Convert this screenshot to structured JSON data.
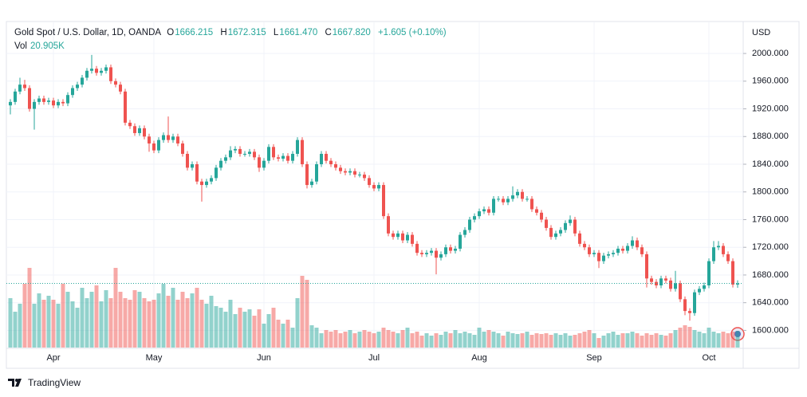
{
  "chart_data": {
    "type": "candlestick",
    "title": "Gold Spot / U.S. Dollar, 1D, OANDA",
    "ohlc": [
      {
        "key": "O",
        "value": "1666.215"
      },
      {
        "key": "H",
        "value": "1672.315"
      },
      {
        "key": "L",
        "value": "1661.470"
      },
      {
        "key": "C",
        "value": "1667.820"
      }
    ],
    "change": "+1.605 (+0.10%)",
    "volume_label": "Vol",
    "volume_value": "20.905K",
    "currency": "USD",
    "brand": "TradingView",
    "up_color": "#26a69a",
    "down_color": "#ef5350",
    "grid": true,
    "ylim": [
      1574,
      2045
    ],
    "yticks": [
      {
        "value": 1600,
        "label": "1600.000"
      },
      {
        "value": 1640,
        "label": "1640.000"
      },
      {
        "value": 1680,
        "label": "1680.000"
      },
      {
        "value": 1720,
        "label": "1720.000"
      },
      {
        "value": 1760,
        "label": "1760.000"
      },
      {
        "value": 1800,
        "label": "1800.000"
      },
      {
        "value": 1840,
        "label": "1840.000"
      },
      {
        "value": 1880,
        "label": "1880.000"
      },
      {
        "value": 1920,
        "label": "1920.000"
      },
      {
        "value": 1960,
        "label": "1960.000"
      },
      {
        "value": 2000,
        "label": "2000.000"
      }
    ],
    "categories": [
      null,
      null,
      null,
      null,
      null,
      null,
      null,
      null,
      null,
      "Apr",
      null,
      null,
      null,
      null,
      null,
      null,
      null,
      null,
      null,
      null,
      null,
      null,
      null,
      null,
      null,
      null,
      null,
      null,
      null,
      null,
      "May",
      null,
      null,
      null,
      null,
      null,
      null,
      null,
      null,
      null,
      null,
      null,
      null,
      null,
      null,
      null,
      null,
      null,
      null,
      null,
      null,
      null,
      null,
      "Jun",
      null,
      null,
      null,
      null,
      null,
      null,
      null,
      null,
      null,
      null,
      null,
      null,
      null,
      null,
      null,
      null,
      null,
      null,
      null,
      null,
      null,
      null,
      "Jul",
      null,
      null,
      null,
      null,
      null,
      null,
      null,
      null,
      null,
      null,
      null,
      null,
      null,
      null,
      null,
      null,
      null,
      null,
      null,
      null,
      null,
      "Aug",
      null,
      null,
      null,
      null,
      null,
      null,
      null,
      null,
      null,
      null,
      null,
      null,
      null,
      null,
      null,
      null,
      null,
      null,
      null,
      null,
      null,
      null,
      null,
      "Sep",
      null,
      null,
      null,
      null,
      null,
      null,
      null,
      null,
      null,
      null,
      null,
      null,
      null,
      null,
      null,
      null,
      null,
      null,
      null,
      null,
      null,
      null,
      null,
      "Oct",
      null,
      null,
      null,
      null,
      null,
      null
    ],
    "open": [
      1925,
      1930,
      1945,
      1955,
      1950,
      1920,
      1930,
      1935,
      1930,
      1932,
      1925,
      1930,
      1928,
      1940,
      1950,
      1955,
      1965,
      1975,
      1978,
      1972,
      1975,
      1980,
      1960,
      1955,
      1945,
      1900,
      1895,
      1885,
      1892,
      1880,
      1870,
      1860,
      1875,
      1882,
      1875,
      1880,
      1870,
      1855,
      1835,
      1840,
      1815,
      1810,
      1815,
      1820,
      1835,
      1845,
      1850,
      1860,
      1862,
      1855,
      1855,
      1858,
      1850,
      1835,
      1845,
      1865,
      1850,
      1848,
      1852,
      1845,
      1855,
      1875,
      1840,
      1810,
      1815,
      1840,
      1855,
      1845,
      1840,
      1835,
      1830,
      1828,
      1830,
      1825,
      1825,
      1820,
      1810,
      1805,
      1810,
      1765,
      1740,
      1735,
      1740,
      1730,
      1738,
      1725,
      1712,
      1710,
      1712,
      1715,
      1705,
      1710,
      1720,
      1715,
      1718,
      1738,
      1745,
      1760,
      1765,
      1772,
      1775,
      1770,
      1790,
      1790,
      1785,
      1790,
      1795,
      1800,
      1790,
      1790,
      1775,
      1770,
      1760,
      1748,
      1735,
      1740,
      1745,
      1755,
      1760,
      1740,
      1725,
      1720,
      1710,
      1712,
      1700,
      1708,
      1710,
      1712,
      1718,
      1715,
      1722,
      1730,
      1720,
      1710,
      1675,
      1670,
      1665,
      1675,
      1672,
      1660,
      1668,
      1645,
      1628,
      1625,
      1655,
      1660,
      1665,
      1700,
      1720,
      1722,
      1710,
      1700,
      1666.215
    ],
    "high": [
      1934,
      1949,
      1965,
      1962,
      1954,
      1934,
      1939,
      1939,
      1936,
      1936,
      1934,
      1934,
      1944,
      1954,
      1959,
      1969,
      1979,
      1998,
      1982,
      1979,
      1984,
      1984,
      1964,
      1959,
      1949,
      1904,
      1899,
      1896,
      1896,
      1884,
      1874,
      1879,
      1886,
      1909,
      1884,
      1884,
      1874,
      1859,
      1844,
      1844,
      1819,
      1819,
      1824,
      1839,
      1849,
      1854,
      1866,
      1866,
      1866,
      1859,
      1862,
      1862,
      1854,
      1849,
      1869,
      1869,
      1854,
      1856,
      1856,
      1859,
      1879,
      1879,
      1844,
      1819,
      1844,
      1859,
      1859,
      1849,
      1844,
      1839,
      1834,
      1834,
      1834,
      1829,
      1829,
      1824,
      1814,
      1814,
      1814,
      1769,
      1744,
      1744,
      1744,
      1742,
      1742,
      1729,
      1716,
      1716,
      1719,
      1719,
      1714,
      1724,
      1724,
      1722,
      1742,
      1749,
      1764,
      1769,
      1776,
      1779,
      1779,
      1794,
      1794,
      1794,
      1794,
      1808,
      1804,
      1804,
      1794,
      1794,
      1779,
      1774,
      1764,
      1752,
      1744,
      1749,
      1759,
      1766,
      1764,
      1744,
      1729,
      1724,
      1716,
      1716,
      1712,
      1714,
      1716,
      1722,
      1722,
      1726,
      1736,
      1734,
      1724,
      1714,
      1679,
      1674,
      1679,
      1679,
      1676,
      1686,
      1672,
      1649,
      1632,
      1659,
      1664,
      1669,
      1704,
      1729,
      1729,
      1726,
      1714,
      1704,
      1672.315
    ],
    "low": [
      1912,
      1926,
      1941,
      1946,
      1916,
      1890,
      1926,
      1926,
      1926,
      1921,
      1921,
      1924,
      1924,
      1936,
      1946,
      1951,
      1961,
      1971,
      1968,
      1968,
      1971,
      1956,
      1951,
      1941,
      1896,
      1891,
      1881,
      1881,
      1876,
      1858,
      1856,
      1856,
      1871,
      1871,
      1871,
      1866,
      1851,
      1831,
      1831,
      1811,
      1786,
      1806,
      1811,
      1816,
      1831,
      1841,
      1846,
      1856,
      1851,
      1851,
      1851,
      1846,
      1829,
      1831,
      1841,
      1846,
      1844,
      1844,
      1841,
      1841,
      1851,
      1836,
      1805,
      1806,
      1811,
      1836,
      1841,
      1836,
      1831,
      1826,
      1824,
      1824,
      1821,
      1821,
      1816,
      1806,
      1801,
      1801,
      1761,
      1736,
      1731,
      1731,
      1726,
      1726,
      1721,
      1708,
      1706,
      1706,
      1708,
      1681,
      1701,
      1706,
      1711,
      1711,
      1714,
      1734,
      1741,
      1756,
      1761,
      1768,
      1766,
      1766,
      1786,
      1781,
      1781,
      1786,
      1791,
      1786,
      1786,
      1771,
      1766,
      1756,
      1744,
      1731,
      1731,
      1736,
      1741,
      1751,
      1736,
      1721,
      1716,
      1706,
      1706,
      1690,
      1696,
      1704,
      1706,
      1708,
      1711,
      1711,
      1718,
      1716,
      1706,
      1662,
      1666,
      1661,
      1661,
      1668,
      1656,
      1656,
      1641,
      1622,
      1614,
      1621,
      1651,
      1656,
      1661,
      1696,
      1716,
      1706,
      1696,
      1662,
      1661.47
    ],
    "close": [
      1930,
      1945,
      1955,
      1950,
      1920,
      1930,
      1935,
      1930,
      1932,
      1925,
      1930,
      1928,
      1940,
      1950,
      1955,
      1965,
      1975,
      1978,
      1972,
      1975,
      1980,
      1960,
      1955,
      1945,
      1900,
      1895,
      1885,
      1892,
      1880,
      1870,
      1860,
      1875,
      1882,
      1875,
      1880,
      1870,
      1855,
      1835,
      1840,
      1815,
      1810,
      1815,
      1820,
      1835,
      1845,
      1850,
      1860,
      1862,
      1855,
      1855,
      1858,
      1850,
      1835,
      1845,
      1865,
      1850,
      1848,
      1852,
      1845,
      1855,
      1875,
      1840,
      1810,
      1815,
      1840,
      1855,
      1845,
      1840,
      1835,
      1830,
      1828,
      1830,
      1825,
      1825,
      1820,
      1810,
      1805,
      1810,
      1765,
      1740,
      1735,
      1740,
      1730,
      1738,
      1725,
      1712,
      1710,
      1712,
      1715,
      1705,
      1710,
      1720,
      1715,
      1718,
      1738,
      1745,
      1760,
      1765,
      1772,
      1775,
      1770,
      1790,
      1790,
      1785,
      1790,
      1795,
      1800,
      1790,
      1790,
      1775,
      1770,
      1760,
      1748,
      1735,
      1740,
      1745,
      1755,
      1760,
      1740,
      1725,
      1720,
      1710,
      1712,
      1700,
      1708,
      1710,
      1712,
      1718,
      1715,
      1722,
      1730,
      1720,
      1710,
      1675,
      1670,
      1665,
      1675,
      1672,
      1660,
      1668,
      1645,
      1628,
      1625,
      1655,
      1660,
      1665,
      1700,
      1720,
      1722,
      1710,
      1700,
      1666.215,
      1667.82
    ],
    "volume": [
      62,
      45,
      55,
      80,
      100,
      55,
      68,
      60,
      65,
      60,
      55,
      80,
      70,
      58,
      50,
      75,
      62,
      70,
      78,
      58,
      72,
      62,
      100,
      70,
      62,
      60,
      72,
      70,
      62,
      58,
      60,
      68,
      80,
      65,
      75,
      60,
      70,
      62,
      68,
      75,
      60,
      55,
      65,
      52,
      50,
      45,
      60,
      42,
      50,
      45,
      48,
      40,
      48,
      30,
      42,
      50,
      35,
      30,
      35,
      25,
      62,
      90,
      85,
      28,
      25,
      18,
      22,
      20,
      22,
      18,
      20,
      22,
      18,
      20,
      22,
      20,
      18,
      20,
      25,
      22,
      20,
      18,
      22,
      25,
      18,
      20,
      15,
      18,
      15,
      18,
      16,
      20,
      18,
      22,
      18,
      20,
      18,
      16,
      25,
      20,
      22,
      20,
      18,
      15,
      20,
      18,
      17,
      18,
      20,
      16,
      18,
      17,
      18,
      16,
      18,
      16,
      18,
      15,
      16,
      18,
      20,
      22,
      18,
      12,
      15,
      18,
      20,
      16,
      18,
      18,
      20,
      18,
      15,
      18,
      16,
      18,
      16,
      15,
      18,
      22,
      25,
      28,
      26,
      22,
      20,
      18,
      25,
      20,
      18,
      20,
      18,
      20,
      20.905
    ]
  }
}
